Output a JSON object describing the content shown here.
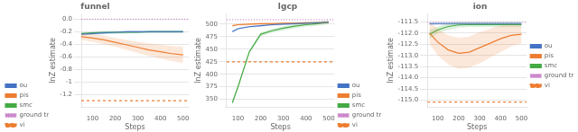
{
  "chart_data": [
    {
      "type": "line",
      "title": "funnel",
      "x_label": "Steps",
      "y_label": "lnZ estimate",
      "x": [
        50,
        100,
        150,
        200,
        250,
        300,
        350,
        400,
        450,
        500
      ],
      "series": [
        {
          "name": "ou",
          "color": "#4472C4",
          "values": [
            -0.24,
            -0.23,
            -0.22,
            -0.21,
            -0.2,
            -0.2,
            -0.2,
            -0.2,
            -0.2,
            -0.2
          ],
          "lo": [
            -0.26,
            -0.25,
            -0.24,
            -0.23,
            -0.22,
            -0.22,
            -0.22,
            -0.22,
            -0.22,
            -0.22
          ],
          "hi": [
            -0.22,
            -0.21,
            -0.2,
            -0.19,
            -0.18,
            -0.18,
            -0.18,
            -0.18,
            -0.18,
            -0.18
          ]
        },
        {
          "name": "pis",
          "color": "#ED7D31",
          "values": [
            -0.28,
            -0.3,
            -0.33,
            -0.37,
            -0.41,
            -0.45,
            -0.49,
            -0.52,
            -0.55,
            -0.57
          ],
          "lo": [
            -0.33,
            -0.36,
            -0.4,
            -0.44,
            -0.49,
            -0.54,
            -0.59,
            -0.63,
            -0.67,
            -0.7
          ],
          "hi": [
            -0.23,
            -0.24,
            -0.26,
            -0.3,
            -0.33,
            -0.36,
            -0.39,
            -0.41,
            -0.43,
            -0.44
          ]
        },
        {
          "name": "smc",
          "color": "#44AA44",
          "values": [
            -0.23,
            -0.22,
            -0.21,
            -0.21,
            -0.21,
            -0.21,
            -0.2,
            -0.2,
            -0.2,
            -0.2
          ],
          "lo": [
            -0.25,
            -0.24,
            -0.23,
            -0.23,
            -0.23,
            -0.22,
            -0.22,
            -0.22,
            -0.22,
            -0.22
          ],
          "hi": [
            -0.21,
            -0.2,
            -0.19,
            -0.19,
            -0.19,
            -0.2,
            -0.18,
            -0.18,
            -0.18,
            -0.18
          ]
        }
      ],
      "hlines": [
        {
          "name": "ground truth",
          "value": 0.0,
          "color": "#CC88CC",
          "line_style": "dotted"
        },
        {
          "name": "vi",
          "value": -1.3,
          "color": "#ED7D31",
          "line_style": "dashed"
        }
      ],
      "xlim": [
        50,
        525
      ],
      "ylim": [
        -1.4,
        0.08
      ],
      "xticks": [
        100,
        200,
        300,
        400,
        500
      ],
      "yticks": [
        {
          "value": 0.0,
          "label": "0.0"
        },
        -0.2,
        -0.4,
        -0.6,
        -0.8,
        -1.0,
        -1.2
      ],
      "grid": "y",
      "legend": "lower left"
    },
    {
      "type": "line",
      "title": "lgcp",
      "x_label": "Steps",
      "y_label": "lnZ estimate",
      "x": [
        75,
        100,
        150,
        200,
        250,
        300,
        350,
        400,
        450,
        500
      ],
      "series": [
        {
          "name": "ou",
          "color": "#4472C4",
          "values": [
            485,
            491,
            495,
            497,
            499,
            500,
            501,
            502,
            503,
            504
          ],
          "lo": [
            483,
            489,
            493,
            495,
            497,
            498,
            499,
            500,
            501,
            502
          ],
          "hi": [
            487,
            493,
            497,
            499,
            501,
            502,
            503,
            504,
            505,
            506
          ]
        },
        {
          "name": "pis",
          "color": "#ED7D31",
          "values": [
            497,
            499,
            500,
            501,
            501,
            502,
            502,
            503,
            503,
            504
          ],
          "lo": [
            495,
            497,
            498,
            499,
            499,
            500,
            500,
            501,
            501,
            502
          ],
          "hi": [
            499,
            501,
            502,
            503,
            503,
            504,
            504,
            505,
            505,
            506
          ]
        },
        {
          "name": "smc",
          "color": "#44AA44",
          "values": [
            343,
            375,
            445,
            480,
            487,
            492,
            496,
            499,
            501,
            504
          ],
          "lo": [
            339,
            371,
            441,
            476,
            483,
            488,
            492,
            495,
            497,
            500
          ],
          "hi": [
            347,
            379,
            449,
            484,
            491,
            496,
            500,
            503,
            505,
            508
          ]
        }
      ],
      "hlines": [
        {
          "name": "ground truth",
          "value": 509,
          "color": "#CC88CC",
          "line_style": "dotted"
        },
        {
          "name": "vi",
          "value": 425,
          "color": "#ED7D31",
          "line_style": "dashed"
        }
      ],
      "xlim": [
        50,
        525
      ],
      "ylim": [
        335,
        520
      ],
      "xticks": [
        100,
        200,
        300,
        400,
        500
      ],
      "yticks": [
        350,
        375,
        400,
        425,
        450,
        475,
        500
      ],
      "grid": "y",
      "legend": "lower right"
    },
    {
      "type": "line",
      "title": "ion",
      "x_label": "Steps",
      "y_label": "lnZ estimate",
      "x": [
        60,
        100,
        150,
        200,
        250,
        300,
        350,
        400,
        450,
        500
      ],
      "series": [
        {
          "name": "ou",
          "color": "#4472C4",
          "values": [
            -111.58,
            -111.57,
            -111.57,
            -111.57,
            -111.57,
            -111.57,
            -111.57,
            -111.57,
            -111.57,
            -111.57
          ],
          "lo": [
            -111.65,
            -111.63,
            -111.63,
            -111.63,
            -111.63,
            -111.63,
            -111.63,
            -111.63,
            -111.63,
            -111.63
          ],
          "hi": [
            -111.51,
            -111.51,
            -111.51,
            -111.51,
            -111.51,
            -111.51,
            -111.51,
            -111.51,
            -111.51,
            -111.51
          ]
        },
        {
          "name": "pis",
          "color": "#ED7D31",
          "values": [
            -112.0,
            -112.4,
            -112.75,
            -112.9,
            -112.85,
            -112.65,
            -112.45,
            -112.25,
            -112.1,
            -112.05
          ],
          "lo": [
            -112.5,
            -113.0,
            -113.4,
            -113.6,
            -113.55,
            -113.35,
            -113.1,
            -112.85,
            -112.6,
            -112.45
          ],
          "hi": [
            -111.5,
            -111.8,
            -112.1,
            -112.2,
            -112.15,
            -111.95,
            -111.8,
            -111.65,
            -111.6,
            -111.65
          ]
        },
        {
          "name": "smc",
          "color": "#44AA44",
          "values": [
            -112.05,
            -111.85,
            -111.7,
            -111.63,
            -111.62,
            -111.62,
            -111.62,
            -111.62,
            -111.62,
            -111.62
          ],
          "lo": [
            -112.25,
            -112.0,
            -111.85,
            -111.75,
            -111.73,
            -111.73,
            -111.73,
            -111.73,
            -111.73,
            -111.73
          ],
          "hi": [
            -111.85,
            -111.7,
            -111.55,
            -111.51,
            -111.51,
            -111.51,
            -111.51,
            -111.51,
            -111.51,
            -111.51
          ]
        }
      ],
      "hlines": [
        {
          "name": "ground truth",
          "value": -111.51,
          "color": "#CC88CC",
          "line_style": "dotted"
        },
        {
          "name": "vi",
          "value": -115.08,
          "color": "#ED7D31",
          "line_style": "dashed"
        }
      ],
      "xlim": [
        50,
        525
      ],
      "ylim": [
        -115.3,
        -111.15
      ],
      "xticks": [
        100,
        200,
        300,
        400,
        500
      ],
      "yticks": [
        -111.5,
        {
          "value": -112.0,
          "label": "-112.0"
        },
        -112.5,
        {
          "value": -113.0,
          "label": "-113.0"
        },
        -113.5,
        {
          "value": -114.0,
          "label": "-114.0"
        },
        -114.5,
        {
          "value": -115.0,
          "label": "-115.0"
        }
      ],
      "grid": "y",
      "legend": "center right"
    }
  ]
}
